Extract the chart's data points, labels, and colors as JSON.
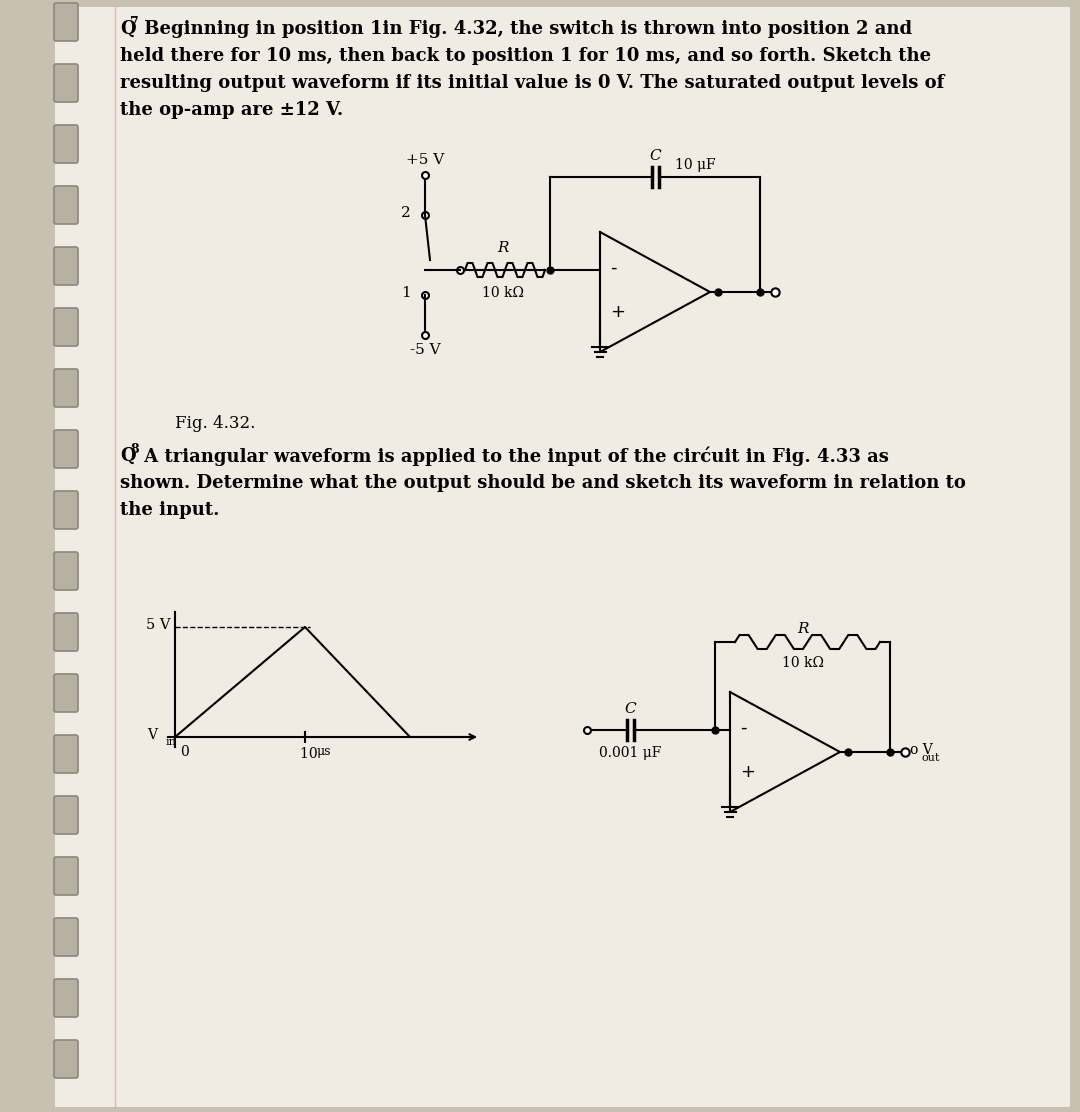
{
  "bg_color": "#f0ece4",
  "text_color": "#000000",
  "line_color": "#000000",
  "page_bg": "#e8e0d0",
  "q7_line1": " Beginning in position 1in Fig. 4.32, the switch is thrown into position 2 and",
  "q7_line2": "held there for 10 ms, then back to position 1 for 10 ms, and so forth. Sketch the",
  "q7_line3": "resulting output waveform if its initial value is 0 V. The saturated output levels of",
  "q7_line4": "the op-amp are ±12 V.",
  "fig432_caption": "Fig. 4.32.",
  "q8_line1": " A triangular waveform is applied to the input of the cirćuit in Fig. 4.33 as",
  "q8_line2": "shown. Determine what the output should be and sketch its waveform in relation to",
  "q8_line3": "the input."
}
